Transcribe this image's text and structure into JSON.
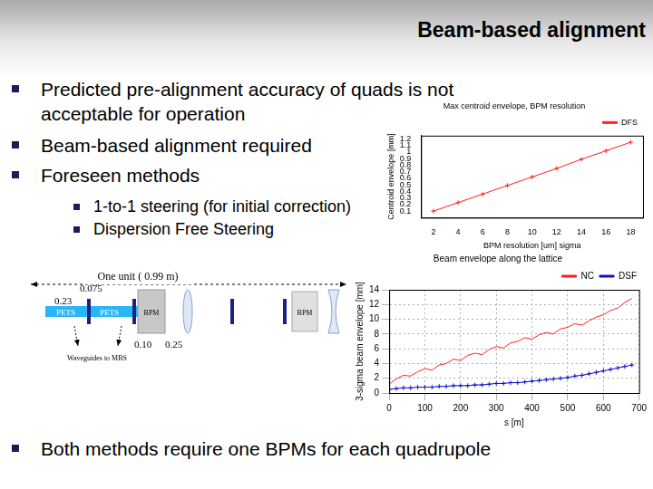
{
  "slide": {
    "title": "Beam-based alignment",
    "bullets": [
      [
        "Predicted pre-alignment accuracy of quads is not",
        "acceptable for operation"
      ],
      [
        "Beam-based alignment required"
      ],
      [
        "Foreseen methods"
      ]
    ],
    "sub_bullets": [
      "1-to-1 steering (for initial correction)",
      "Dispersion Free Steering"
    ],
    "last_bullet": "Both methods require one BPMs for each quadrupole"
  },
  "diagram": {
    "title": "One unit ( 0.99 m)",
    "dimensions": [
      "0.075",
      "0.23",
      "0.10",
      "0.25"
    ],
    "pets": [
      "PETS",
      "PETS"
    ],
    "bpm": [
      "BPM",
      "BPM"
    ],
    "note": "Waveguides to MBS"
  },
  "chart_data": [
    {
      "type": "line",
      "title": "Max centroid envelope, BPM resolution",
      "x_label": "BPM resolution [um] sigma",
      "y_label": "Centroid envelope [mm]",
      "x": [
        2,
        4,
        6,
        8,
        10,
        12,
        14,
        16,
        18
      ],
      "series": [
        {
          "name": "DFS",
          "color": "#ff2020",
          "marker": "cross",
          "values": [
            0.1,
            0.23,
            0.36,
            0.49,
            0.62,
            0.75,
            0.89,
            1.02,
            1.15
          ]
        }
      ],
      "xlim": [
        1,
        19
      ],
      "xticks": [
        2,
        4,
        6,
        8,
        10,
        12,
        14,
        16,
        18
      ],
      "ylim": [
        0,
        1.25
      ],
      "yticks": [
        0.1,
        0.2,
        0.3,
        0.4,
        0.5,
        0.6,
        0.7,
        0.8,
        0.9,
        1,
        1.1,
        1.2
      ],
      "grid": false,
      "legend": "top-right"
    },
    {
      "type": "line",
      "title": "Beam envelope along the lattice",
      "x_label": "s [m]",
      "y_label": "3-sigma beam envelope [mm]",
      "x": [
        0,
        20,
        40,
        60,
        80,
        100,
        120,
        140,
        160,
        180,
        200,
        220,
        240,
        260,
        280,
        300,
        320,
        340,
        360,
        380,
        400,
        420,
        440,
        460,
        480,
        500,
        520,
        540,
        560,
        580,
        600,
        620,
        640,
        660,
        680
      ],
      "series": [
        {
          "name": "NC",
          "color": "#ff2020",
          "values": [
            1.2,
            1.9,
            2.4,
            2.3,
            2.9,
            3.3,
            3.1,
            3.8,
            4.0,
            4.6,
            4.4,
            5.1,
            5.4,
            5.2,
            5.9,
            6.3,
            6.1,
            6.8,
            7.0,
            7.5,
            7.3,
            7.9,
            8.2,
            8.0,
            8.7,
            8.9,
            9.4,
            9.2,
            9.8,
            10.3,
            10.6,
            11.2,
            11.5,
            12.3,
            12.8
          ]
        },
        {
          "name": "DSF",
          "color": "#1010d0",
          "marker": "cross",
          "values": [
            0.5,
            0.6,
            0.7,
            0.7,
            0.8,
            0.8,
            0.8,
            0.9,
            0.9,
            1.0,
            1.0,
            1.0,
            1.1,
            1.1,
            1.2,
            1.3,
            1.3,
            1.4,
            1.4,
            1.5,
            1.6,
            1.7,
            1.8,
            1.9,
            2.0,
            2.1,
            2.3,
            2.4,
            2.6,
            2.8,
            3.0,
            3.2,
            3.4,
            3.6,
            3.8
          ]
        }
      ],
      "xlim": [
        0,
        700
      ],
      "xticks": [
        0,
        100,
        200,
        300,
        400,
        500,
        600,
        700
      ],
      "ylim": [
        0,
        14
      ],
      "yticks": [
        0,
        2,
        4,
        6,
        8,
        10,
        12,
        14
      ],
      "grid": true,
      "legend": "top-right"
    }
  ]
}
